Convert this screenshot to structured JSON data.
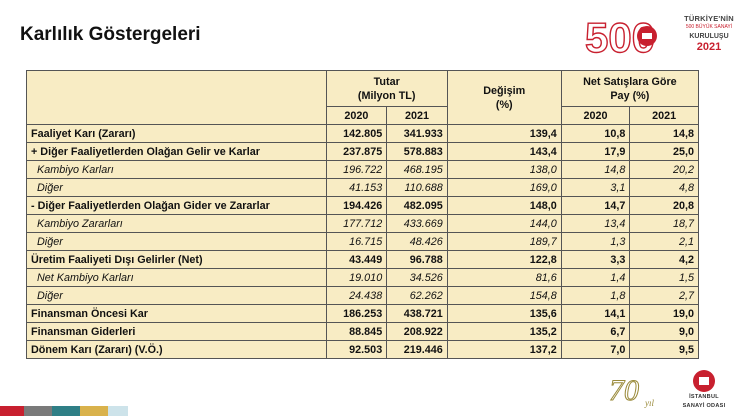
{
  "page": {
    "title": "Karlılık Göstergeleri"
  },
  "logo": {
    "number": "500",
    "line1": "TÜRKİYE'NİN",
    "line2": "500 BÜYÜK SANAYİ",
    "line3": "KURULUŞU",
    "year": "2021"
  },
  "table": {
    "header": {
      "tutar": "Tutar",
      "tutar_unit": "(Milyon TL)",
      "degisim": "Değişim",
      "degisim_unit": "(%)",
      "pay": "Net Satışlara Göre",
      "pay_unit": "Pay (%)",
      "y2020": "2020",
      "y2021": "2021",
      "p2020": "2020",
      "p2021": "2021"
    },
    "rows": [
      {
        "label": "Faaliyet Karı (Zararı)",
        "v2020": "142.805",
        "v2021": "341.933",
        "change": "139,4",
        "p2020": "10,8",
        "p2021": "14,8"
      },
      {
        "label": "+ Diğer Faaliyetlerden Olağan Gelir ve Karlar",
        "v2020": "237.875",
        "v2021": "578.883",
        "change": "143,4",
        "p2020": "17,9",
        "p2021": "25,0"
      },
      {
        "label": "Kambiyo Karları",
        "v2020": "196.722",
        "v2021": "468.195",
        "change": "138,0",
        "p2020": "14,8",
        "p2021": "20,2"
      },
      {
        "label": "Diğer",
        "v2020": "41.153",
        "v2021": "110.688",
        "change": "169,0",
        "p2020": "3,1",
        "p2021": "4,8"
      },
      {
        "label": "- Diğer Faaliyetlerden Olağan Gider ve Zararlar",
        "v2020": "194.426",
        "v2021": "482.095",
        "change": "148,0",
        "p2020": "14,7",
        "p2021": "20,8"
      },
      {
        "label": "Kambiyo Zararları",
        "v2020": "177.712",
        "v2021": "433.669",
        "change": "144,0",
        "p2020": "13,4",
        "p2021": "18,7"
      },
      {
        "label": "Diğer",
        "v2020": "16.715",
        "v2021": "48.426",
        "change": "189,7",
        "p2020": "1,3",
        "p2021": "2,1"
      },
      {
        "label": "Üretim Faaliyeti Dışı Gelirler (Net)",
        "v2020": "43.449",
        "v2021": "96.788",
        "change": "122,8",
        "p2020": "3,3",
        "p2021": "4,2"
      },
      {
        "label": "Net Kambiyo Karları",
        "v2020": "19.010",
        "v2021": "34.526",
        "change": "81,6",
        "p2020": "1,4",
        "p2021": "1,5"
      },
      {
        "label": "Diğer",
        "v2020": "24.438",
        "v2021": "62.262",
        "change": "154,8",
        "p2020": "1,8",
        "p2021": "2,7"
      },
      {
        "label": "Finansman Öncesi Kar",
        "v2020": "186.253",
        "v2021": "438.721",
        "change": "135,6",
        "p2020": "14,1",
        "p2021": "19,0"
      },
      {
        "label": "Finansman Giderleri",
        "v2020": "88.845",
        "v2021": "208.922",
        "change": "135,2",
        "p2020": "6,7",
        "p2021": "9,0"
      },
      {
        "label": "Dönem Karı (Zararı) (V.Ö.)",
        "v2020": "92.503",
        "v2021": "219.446",
        "change": "137,2",
        "p2020": "7,0",
        "p2021": "9,5"
      }
    ]
  },
  "footer": {
    "anniversary_number": "70",
    "anniversary_word": "yıl",
    "org_line1": "İSTANBUL",
    "org_line2": "SANAYİ ODASI"
  },
  "colors": {
    "accent_red": "#c8202f",
    "table_fill": "#f8ecc4",
    "highlight_text": "#d42a1c"
  }
}
